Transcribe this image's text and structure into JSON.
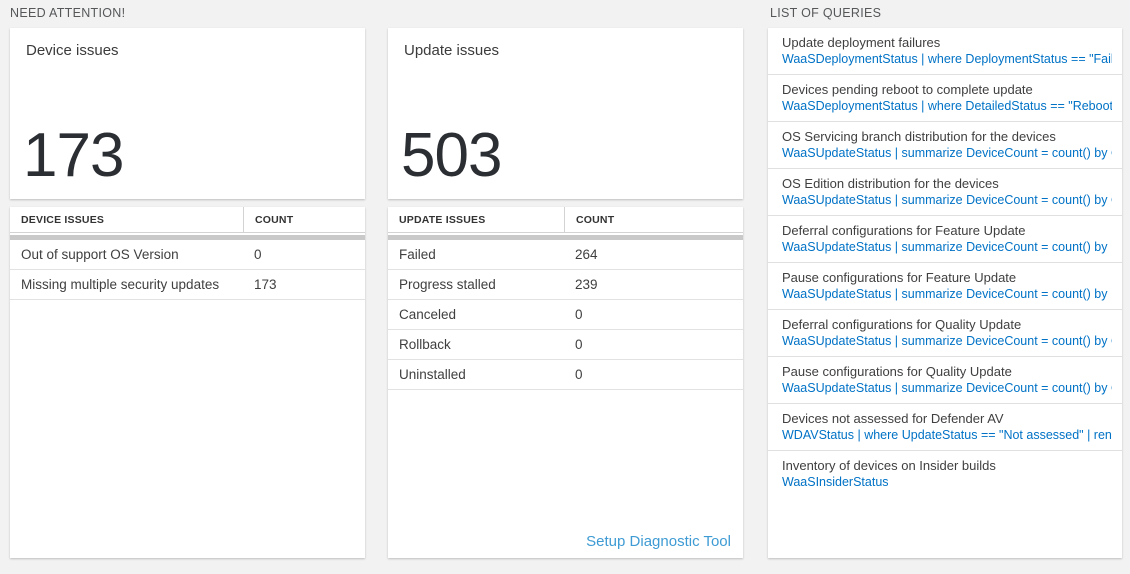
{
  "colors": {
    "page_background": "#f2f2f2",
    "panel_background": "#ffffff",
    "query_code_blue": "#0072c6",
    "diagnostic_link_blue": "#3e9bd4",
    "big_number_color": "#2b2e33"
  },
  "need_attention": {
    "section_title": "NEED ATTENTION!",
    "device_card": {
      "title": "Device issues",
      "count": "173"
    },
    "device_table": {
      "columns": [
        "DEVICE ISSUES",
        "COUNT"
      ],
      "rows": [
        {
          "label": "Out of support OS Version",
          "count": "0"
        },
        {
          "label": "Missing multiple security updates",
          "count": "173"
        }
      ]
    },
    "update_card": {
      "title": "Update issues",
      "count": "503"
    },
    "update_table": {
      "columns": [
        "UPDATE ISSUES",
        "COUNT"
      ],
      "rows": [
        {
          "label": "Failed",
          "count": "264"
        },
        {
          "label": "Progress stalled",
          "count": "239"
        },
        {
          "label": "Canceled",
          "count": "0"
        },
        {
          "label": "Rollback",
          "count": "0"
        },
        {
          "label": "Uninstalled",
          "count": "0"
        }
      ]
    },
    "setup_link": "Setup Diagnostic Tool"
  },
  "queries": {
    "section_title": "LIST OF QUERIES",
    "items": [
      {
        "title": "Update deployment failures",
        "query": "WaaSDeploymentStatus | where DeploymentStatus == \"Failed\" |..."
      },
      {
        "title": "Devices pending reboot to complete update",
        "query": "WaaSDeploymentStatus | where DetailedStatus == \"Reboot pend..."
      },
      {
        "title": "OS Servicing branch distribution for the devices",
        "query": "WaaSUpdateStatus | summarize DeviceCount = count() by OSSer..."
      },
      {
        "title": "OS Edition distribution for the devices",
        "query": "WaaSUpdateStatus | summarize DeviceCount = count() by OSEdit..."
      },
      {
        "title": "Deferral configurations for Feature Update",
        "query": "WaaSUpdateStatus | summarize DeviceCount = count() by Featur..."
      },
      {
        "title": "Pause configurations for Feature Update",
        "query": "WaaSUpdateStatus | summarize DeviceCount = count() by Featur..."
      },
      {
        "title": "Deferral configurations for Quality Update",
        "query": "WaaSUpdateStatus | summarize DeviceCount = count() by Qualit..."
      },
      {
        "title": "Pause configurations for Quality Update",
        "query": "WaaSUpdateStatus | summarize DeviceCount = count() by Qualit..."
      },
      {
        "title": "Devices not assessed for Defender AV",
        "query": "WDAVStatus | where UpdateStatus == \"Not assessed\" | render ta..."
      },
      {
        "title": "Inventory of devices on Insider builds",
        "query": "WaaSInsiderStatus"
      }
    ]
  }
}
